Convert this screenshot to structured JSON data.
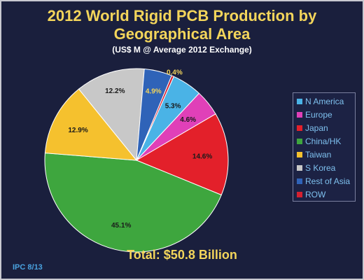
{
  "header": {
    "title_line1": "2012 World Rigid PCB Production by",
    "title_line2": "Geographical Area",
    "subtitle": "(US$ M @ Average 2012 Exchange)"
  },
  "footer": {
    "total": "Total: $50.8 Billion",
    "source": "IPC 8/13"
  },
  "chart_data": {
    "type": "pie",
    "title": "2012 World Rigid PCB Production by Geographical Area",
    "subtitle": "(US$ M @ Average 2012 Exchange)",
    "legend_position": "right",
    "slices": [
      {
        "name": "N America",
        "value": 5.3,
        "label": "5.3%",
        "color": "#4ab3e6"
      },
      {
        "name": "Europe",
        "value": 4.6,
        "label": "4.6%",
        "color": "#e040b8"
      },
      {
        "name": "Japan",
        "value": 14.6,
        "label": "14.6%",
        "color": "#e3202a"
      },
      {
        "name": "China/HK",
        "value": 45.1,
        "label": "45.1%",
        "color": "#3ea63e"
      },
      {
        "name": "Taiwan",
        "value": 12.9,
        "label": "12.9%",
        "color": "#f5c12e"
      },
      {
        "name": "S Korea",
        "value": 12.2,
        "label": "12.2%",
        "color": "#c8c8c8"
      },
      {
        "name": "Rest of Asia",
        "value": 4.9,
        "label": "4.9%",
        "color": "#2f63b8"
      },
      {
        "name": "ROW",
        "value": 0.4,
        "label": "0.4%",
        "color": "#d42030"
      }
    ]
  }
}
